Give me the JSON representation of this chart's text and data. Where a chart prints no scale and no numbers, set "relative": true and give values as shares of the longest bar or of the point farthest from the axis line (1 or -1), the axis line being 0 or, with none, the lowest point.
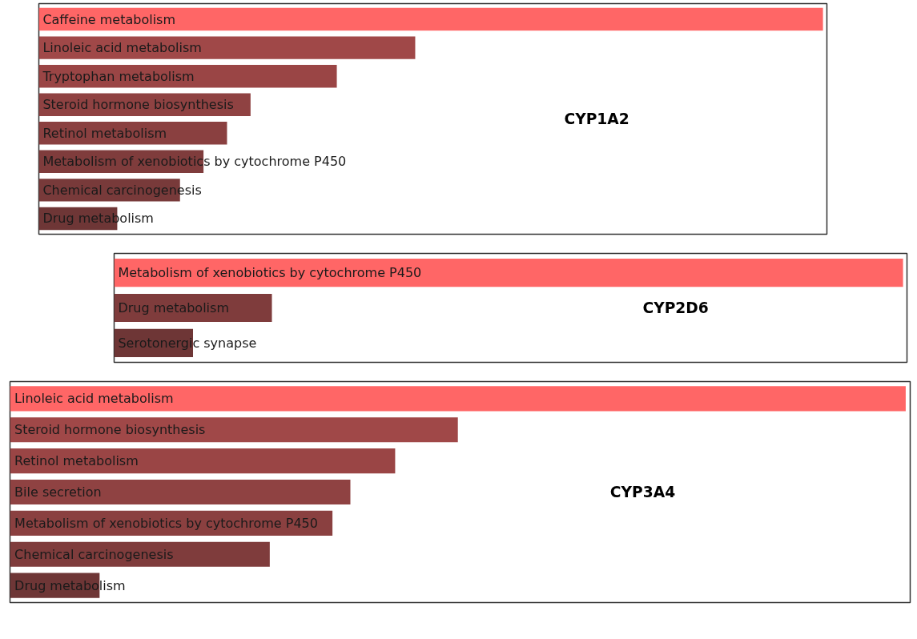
{
  "chart_data": [
    {
      "type": "bar",
      "orientation": "horizontal",
      "relative": true,
      "grid": false,
      "categories": [
        "Caffeine metabolism",
        "Linoleic acid metabolism",
        "Tryptophan metabolism",
        "Steroid hormone biosynthesis",
        "Retinol metabolism",
        "Metabolism of xenobiotics by cytochrome P450",
        "Chemical carcinogenesis",
        "Drug metabolism"
      ],
      "values": [
        1,
        0.48,
        0.38,
        0.27,
        0.24,
        0.21,
        0.18,
        0.1
      ],
      "colors": [
        "#ff6666",
        "#a04848",
        "#9a4545",
        "#8f4242",
        "#8a4040",
        "#7f3c3c",
        "#783a3a",
        "#6e3636"
      ],
      "annotations": [
        "CYP1A2"
      ]
    },
    {
      "type": "bar",
      "orientation": "horizontal",
      "relative": true,
      "grid": false,
      "categories": [
        "Metabolism of xenobiotics by cytochrome P450",
        "Drug metabolism",
        "Serotonergic synapse"
      ],
      "values": [
        1,
        0.2,
        0.1
      ],
      "colors": [
        "#ff6666",
        "#7f3c3c",
        "#6e3636"
      ],
      "annotations": [
        "CYP2D6"
      ]
    },
    {
      "type": "bar",
      "orientation": "horizontal",
      "relative": true,
      "grid": false,
      "categories": [
        "Linoleic acid metabolism",
        "Steroid hormone biosynthesis",
        "Retinol metabolism",
        "Bile secretion",
        "Metabolism of xenobiotics by cytochrome P450",
        "Chemical carcinogenesis",
        "Drug metabolism"
      ],
      "values": [
        1,
        0.5,
        0.43,
        0.38,
        0.36,
        0.29,
        0.1
      ],
      "colors": [
        "#ff6666",
        "#a04848",
        "#9a4545",
        "#8f4242",
        "#8a4040",
        "#7f3c3c",
        "#6e3636"
      ],
      "annotations": [
        "CYP3A4"
      ]
    }
  ]
}
